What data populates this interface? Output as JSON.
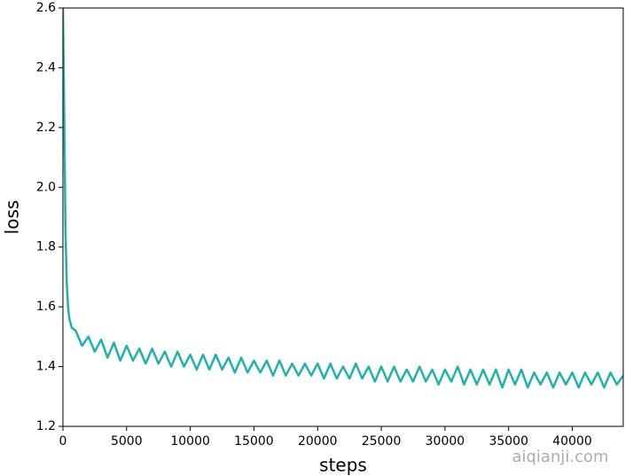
{
  "chart_data": {
    "type": "line",
    "xlabel": "steps",
    "ylabel": "loss",
    "watermark": "aiqianji.com",
    "xlim": [
      0,
      44000
    ],
    "ylim": [
      1.2,
      2.6
    ],
    "xticks": [
      0,
      5000,
      10000,
      15000,
      20000,
      25000,
      30000,
      35000,
      40000
    ],
    "yticks": [
      1.2,
      1.4,
      1.6,
      1.8,
      {
        "value": 2,
        "label": "2.0"
      },
      2.2,
      2.4,
      2.6
    ],
    "x": [
      0,
      100,
      200,
      300,
      400,
      500,
      700,
      1000,
      1500,
      2000,
      2500,
      3000,
      3500,
      4000,
      4500,
      5000,
      5500,
      6000,
      6500,
      7000,
      7500,
      8000,
      8500,
      9000,
      9500,
      10000,
      10500,
      11000,
      11500,
      12000,
      12500,
      13000,
      13500,
      14000,
      14500,
      15000,
      15500,
      16000,
      16500,
      17000,
      17500,
      18000,
      18500,
      19000,
      19500,
      20000,
      20500,
      21000,
      21500,
      22000,
      22500,
      23000,
      23500,
      24000,
      24500,
      25000,
      25500,
      26000,
      26500,
      27000,
      27500,
      28000,
      28500,
      29000,
      29500,
      30000,
      30500,
      31000,
      31500,
      32000,
      32500,
      33000,
      33500,
      34000,
      34500,
      35000,
      35500,
      36000,
      36500,
      37000,
      37500,
      38000,
      38500,
      39000,
      39500,
      40000,
      40500,
      41000,
      41500,
      42000,
      42500,
      43000,
      43500,
      44000
    ],
    "series": [
      {
        "color": "#20b2aa",
        "values": [
          2.6,
          2.25,
          1.85,
          1.68,
          1.6,
          1.56,
          1.53,
          1.52,
          1.47,
          1.5,
          1.45,
          1.49,
          1.43,
          1.48,
          1.42,
          1.47,
          1.42,
          1.46,
          1.41,
          1.46,
          1.41,
          1.45,
          1.4,
          1.45,
          1.4,
          1.44,
          1.39,
          1.44,
          1.39,
          1.44,
          1.39,
          1.43,
          1.38,
          1.43,
          1.38,
          1.42,
          1.38,
          1.42,
          1.37,
          1.42,
          1.37,
          1.41,
          1.37,
          1.41,
          1.37,
          1.41,
          1.36,
          1.41,
          1.36,
          1.4,
          1.36,
          1.41,
          1.36,
          1.4,
          1.35,
          1.4,
          1.35,
          1.4,
          1.35,
          1.39,
          1.35,
          1.4,
          1.35,
          1.39,
          1.34,
          1.39,
          1.35,
          1.4,
          1.34,
          1.39,
          1.34,
          1.39,
          1.34,
          1.39,
          1.33,
          1.39,
          1.34,
          1.39,
          1.33,
          1.38,
          1.34,
          1.38,
          1.33,
          1.38,
          1.34,
          1.38,
          1.33,
          1.38,
          1.34,
          1.38,
          1.33,
          1.38,
          1.34,
          1.37
        ]
      }
    ]
  }
}
